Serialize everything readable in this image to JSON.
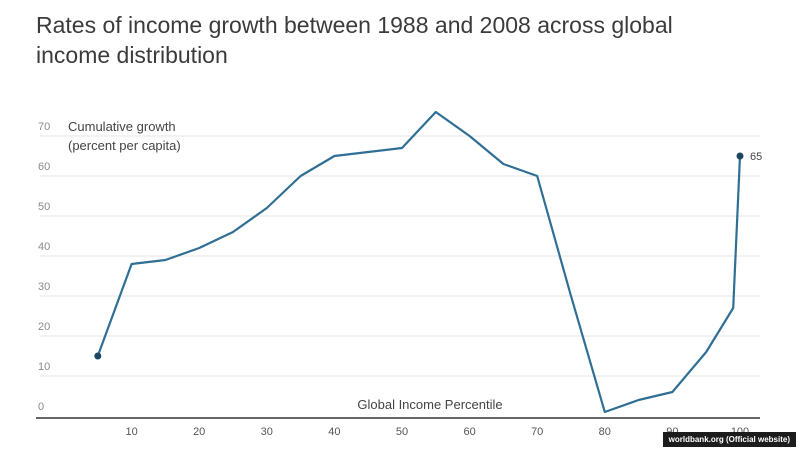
{
  "chart_data": {
    "type": "line",
    "title": "Rates of income growth between 1988 and 2008 across global income distribution",
    "xlabel": "Global Income Percentile",
    "ylabel": "Cumulative growth (percent per capita)",
    "ylabel_lines": [
      "Cumulative growth",
      "(percent per capita)"
    ],
    "xlim": [
      0,
      100
    ],
    "ylim": [
      0,
      70
    ],
    "xticks": [
      10,
      20,
      30,
      40,
      50,
      60,
      70,
      80,
      90,
      100
    ],
    "yticks": [
      0,
      10,
      20,
      30,
      40,
      50,
      60,
      70
    ],
    "grid": true,
    "series": [
      {
        "color": "#2f6f95",
        "points": [
          [
            5,
            15
          ],
          [
            10,
            38
          ],
          [
            15,
            39
          ],
          [
            20,
            42
          ],
          [
            25,
            46
          ],
          [
            30,
            52
          ],
          [
            35,
            60
          ],
          [
            40,
            65
          ],
          [
            45,
            66
          ],
          [
            50,
            67
          ],
          [
            55,
            76
          ],
          [
            60,
            70
          ],
          [
            65,
            63
          ],
          [
            70,
            60
          ],
          [
            75,
            30
          ],
          [
            80,
            1
          ],
          [
            85,
            4
          ],
          [
            90,
            6
          ],
          [
            95,
            16
          ],
          [
            99,
            27
          ],
          [
            100,
            65
          ]
        ]
      }
    ],
    "end_label": "65"
  },
  "source_label": "worldbank.org (Official website)"
}
